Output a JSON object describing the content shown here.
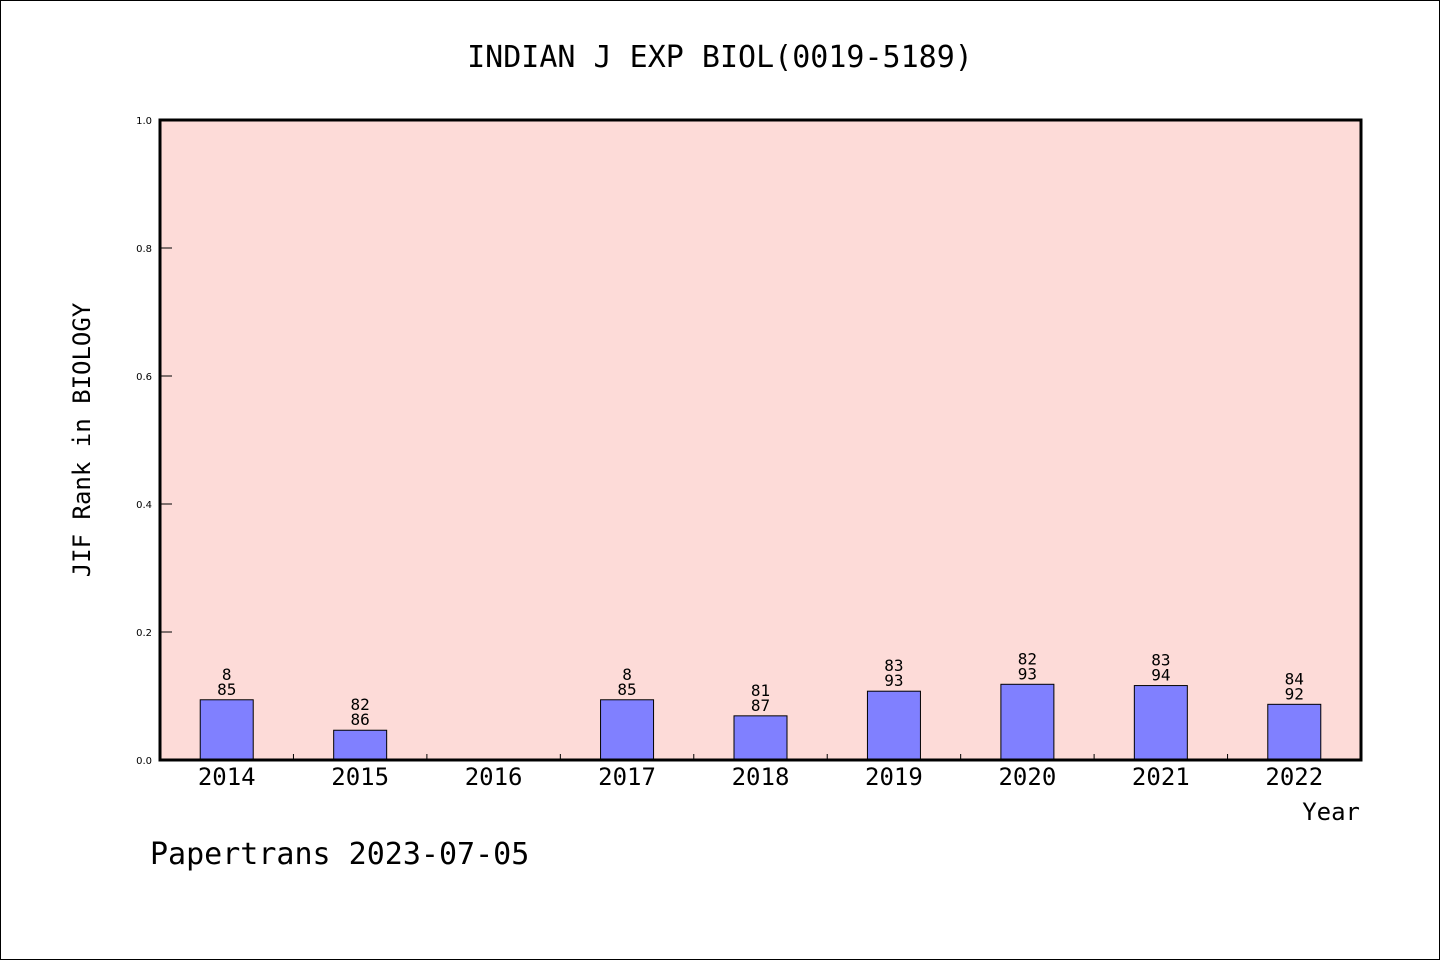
{
  "chart_data": {
    "type": "bar",
    "title": "INDIAN J EXP BIOL(0019-5189)",
    "ylabel": "JIF Rank in BIOLOGY",
    "xlabel": "Year",
    "ylim": [
      0,
      1.0
    ],
    "yticks": [
      "0.0",
      "0.2",
      "0.4",
      "0.6",
      "0.8",
      "1.0"
    ],
    "categories": [
      "2014",
      "2015",
      "2016",
      "2017",
      "2018",
      "2019",
      "2020",
      "2021",
      "2022"
    ],
    "values": [
      0.0941,
      0.0465,
      null,
      0.0941,
      0.069,
      0.1075,
      0.1183,
      0.1163,
      0.087
    ],
    "rank_labels": [
      "8",
      "82",
      "",
      "8",
      "81",
      "83",
      "82",
      "83",
      "84"
    ],
    "total_labels": [
      "85",
      "86",
      "",
      "85",
      "87",
      "93",
      "93",
      "94",
      "92"
    ],
    "grid": false,
    "legend": "none"
  },
  "colors": {
    "plot_background": "#fddbd8",
    "bar_fill": "#8080ff",
    "bar_stroke": "#000000"
  },
  "footer": "Papertrans 2023-07-05"
}
